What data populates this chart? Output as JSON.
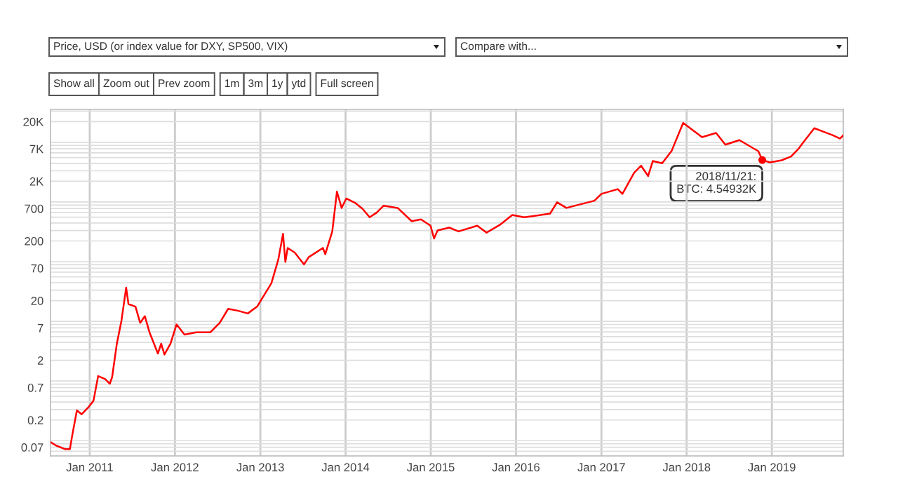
{
  "chart_data": {
    "type": "line",
    "log": "y",
    "grid": true,
    "marker": "none",
    "line_style": "solid",
    "annotations": [
      "Price, USD (or index value for DXY, SP500, VIX)",
      "Compare with...",
      "Show all",
      "Zoom out",
      "Prev zoom",
      "1m",
      "3m",
      "1y",
      "ytd",
      "Full screen",
      {
        "text": "2018/11/21:\nBTC: 4.54932K",
        "x": "2018-11-21",
        "y": 4549.32
      }
    ],
    "xlim": [
      "2010-07-17",
      "2019-11-03"
    ],
    "xticks": [
      {
        "value": "2011-01-01",
        "label": "Jan 2011"
      },
      {
        "value": "2012-01-01",
        "label": "Jan 2012"
      },
      {
        "value": "2013-01-01",
        "label": "Jan 2013"
      },
      {
        "value": "2014-01-01",
        "label": "Jan 2014"
      },
      {
        "value": "2015-01-01",
        "label": "Jan 2015"
      },
      {
        "value": "2016-01-01",
        "label": "Jan 2016"
      },
      {
        "value": "2017-01-01",
        "label": "Jan 2017"
      },
      {
        "value": "2018-01-01",
        "label": "Jan 2018"
      },
      {
        "value": "2019-01-01",
        "label": "Jan 2019"
      }
    ],
    "ylim": [
      0.05,
      32000
    ],
    "yticks": [
      0.07,
      0.2,
      0.7,
      2,
      7,
      20,
      70,
      200,
      700,
      {
        "value": 2000,
        "label": "2K"
      },
      {
        "value": 7000,
        "label": "7K"
      },
      {
        "value": 20000,
        "label": "20K"
      }
    ],
    "series": [
      {
        "color": "#ff0000",
        "x": [
          "2010-07-20",
          "2010-08-09",
          "2010-09-18",
          "2010-10-08",
          "2010-10-18",
          "2010-11-07",
          "2010-11-27",
          "2010-12-27",
          "2011-01-17",
          "2011-02-06",
          "2011-03-08",
          "2011-03-28",
          "2011-04-07",
          "2011-04-27",
          "2011-05-17",
          "2011-06-06",
          "2011-06-16",
          "2011-07-16",
          "2011-08-05",
          "2011-08-25",
          "2011-09-14",
          "2011-10-20",
          "2011-11-03",
          "2011-11-17",
          "2011-12-13",
          "2012-01-08",
          "2012-02-11",
          "2012-04-01",
          "2012-06-01",
          "2012-07-11",
          "2012-08-16",
          "2012-09-29",
          "2012-11-08",
          "2012-12-18",
          "2013-02-17",
          "2013-03-19",
          "2013-04-08",
          "2013-04-18",
          "2013-04-28",
          "2013-05-28",
          "2013-07-07",
          "2013-07-27",
          "2013-09-26",
          "2013-10-06",
          "2013-11-05",
          "2013-11-25",
          "2013-12-15",
          "2014-01-04",
          "2014-02-13",
          "2014-03-15",
          "2014-04-14",
          "2014-05-14",
          "2014-06-13",
          "2014-08-12",
          "2014-10-11",
          "2014-11-20",
          "2014-12-31",
          "2015-01-15",
          "2015-01-30",
          "2015-03-21",
          "2015-04-30",
          "2015-07-19",
          "2015-08-28",
          "2015-10-27",
          "2015-12-16",
          "2016-02-05",
          "2016-05-26",
          "2016-06-25",
          "2016-08-04",
          "2016-12-02",
          "2017-01-01",
          "2017-03-12",
          "2017-04-01",
          "2017-05-21",
          "2017-06-20",
          "2017-07-20",
          "2017-08-09",
          "2017-09-18",
          "2017-10-29",
          "2017-12-17",
          "2018-03-08",
          "2018-05-07",
          "2018-06-16",
          "2018-08-15",
          "2018-11-04",
          "2018-11-21",
          "2018-12-24",
          "2019-02-12",
          "2019-03-24",
          "2019-04-23",
          "2019-05-23",
          "2019-07-02",
          "2019-08-11",
          "2019-09-20",
          "2019-10-20",
          "2019-11-03"
        ],
        "values": [
          0.084,
          0.075,
          0.065,
          0.065,
          0.11,
          0.29,
          0.25,
          0.33,
          0.42,
          1.09,
          0.97,
          0.81,
          1.05,
          3.76,
          9.3,
          33,
          17.5,
          15.9,
          8.5,
          11,
          5.9,
          2.6,
          3.8,
          2.5,
          3.8,
          8,
          5.4,
          5.9,
          5.9,
          8.5,
          14.6,
          13.5,
          12.2,
          15.9,
          39,
          98,
          264,
          89,
          153,
          128,
          81,
          107,
          153,
          120,
          289,
          1350,
          716,
          1030,
          858,
          690,
          498,
          597,
          782,
          716,
          430,
          460,
          360,
          220,
          300,
          335,
          289,
          360,
          276,
          380,
          546,
          498,
          575,
          890,
          716,
          945,
          1230,
          1480,
          1230,
          2780,
          3650,
          2450,
          4370,
          4000,
          6500,
          19000,
          11000,
          12900,
          8200,
          9800,
          6400,
          4549.32,
          4140,
          4500,
          5200,
          6860,
          9800,
          15500,
          13500,
          11800,
          10400,
          11800
        ]
      }
    ]
  }
}
